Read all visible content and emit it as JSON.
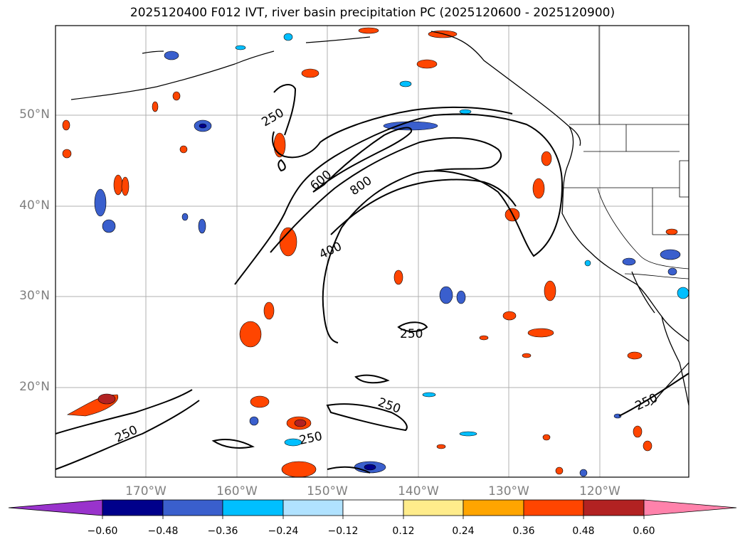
{
  "title": "2025120400 F012 IVT, river basin precipitation PC (2025120600 - 2025120900)",
  "map": {
    "lat_labels": [
      "50°N",
      "40°N",
      "30°N",
      "20°N"
    ],
    "lon_labels": [
      "170°W",
      "160°W",
      "150°W",
      "140°W",
      "130°W",
      "120°W"
    ],
    "contour_labels": [
      "250",
      "600",
      "800",
      "400",
      "250",
      "250",
      "250",
      "250",
      "250"
    ]
  },
  "colorbar": {
    "ticks": [
      "−0.60",
      "−0.48",
      "−0.36",
      "−0.24",
      "−0.12",
      "0.12",
      "0.24",
      "0.36",
      "0.48",
      "0.60"
    ],
    "colors": [
      "#9933cc",
      "#00008b",
      "#3a5fcd",
      "#00bfff",
      "#b0e2ff",
      "#ffffff",
      "#ffec8b",
      "#ffa500",
      "#ff4500",
      "#b22222",
      "#ff82ab"
    ]
  }
}
